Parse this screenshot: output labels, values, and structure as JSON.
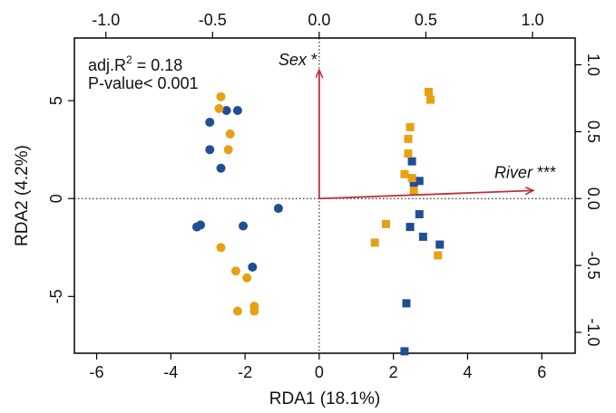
{
  "chart_data": {
    "type": "scatter",
    "title": "",
    "xlabel": "RDA1 (18.1%)",
    "ylabel": "RDA2 (4.2%)",
    "xlim": [
      -6.6,
      6.9
    ],
    "ylim": [
      -7.9,
      8.2
    ],
    "x_ticks": [
      "-6",
      "-4",
      "-2",
      "0",
      "2",
      "4",
      "6"
    ],
    "y_ticks": [
      "-5",
      "0",
      "5"
    ],
    "top_axis": {
      "range": [
        -1.2,
        1.2
      ],
      "ticks": [
        "-1.0",
        "-0.5",
        "0.0",
        "0.5",
        "1.0"
      ]
    },
    "right_axis": {
      "range": [
        -1.2,
        1.2
      ],
      "ticks": [
        "-1.0",
        "-0.5",
        "0.0",
        "0.5",
        "1.0"
      ]
    },
    "grid": false,
    "annotations": [
      "adj.R",
      "2",
      " = 0.18",
      "P-value< 0.001"
    ],
    "colors": {
      "blue": "#1f4e96",
      "orange": "#e8a015",
      "arrow": "#c0303a"
    },
    "series": [
      {
        "marker": "circle",
        "color": "#1f4e96",
        "points": [
          [
            -2.95,
            3.9
          ],
          [
            -2.5,
            4.5
          ],
          [
            -2.2,
            4.5
          ],
          [
            -2.95,
            2.5
          ],
          [
            -2.65,
            1.55
          ],
          [
            -3.3,
            -1.45
          ],
          [
            -3.2,
            -1.35
          ],
          [
            -2.05,
            -1.4
          ],
          [
            -1.1,
            -0.5
          ],
          [
            -1.8,
            -3.5
          ]
        ]
      },
      {
        "marker": "circle",
        "color": "#e8a015",
        "points": [
          [
            -2.65,
            5.2
          ],
          [
            -2.7,
            4.6
          ],
          [
            -2.4,
            3.3
          ],
          [
            -2.45,
            2.5
          ],
          [
            -2.65,
            -2.5
          ],
          [
            -2.25,
            -3.7
          ],
          [
            -1.95,
            -4.05
          ],
          [
            -1.75,
            -5.5
          ],
          [
            -1.75,
            -5.75
          ],
          [
            -2.2,
            -5.75
          ]
        ]
      },
      {
        "marker": "square",
        "color": "#1f4e96",
        "points": [
          [
            2.5,
            1.9
          ],
          [
            2.7,
            0.9
          ],
          [
            2.55,
            0.8
          ],
          [
            2.7,
            -0.8
          ],
          [
            2.45,
            -1.45
          ],
          [
            2.8,
            -1.95
          ],
          [
            3.25,
            -2.35
          ],
          [
            2.35,
            -5.35
          ],
          [
            2.3,
            -7.8
          ]
        ]
      },
      {
        "marker": "square",
        "color": "#e8a015",
        "points": [
          [
            2.95,
            5.45
          ],
          [
            3.0,
            5.05
          ],
          [
            2.45,
            3.65
          ],
          [
            2.4,
            3.05
          ],
          [
            2.4,
            2.3
          ],
          [
            2.3,
            1.25
          ],
          [
            2.5,
            1.05
          ],
          [
            2.55,
            0.4
          ],
          [
            1.8,
            -1.3
          ],
          [
            1.5,
            -2.25
          ],
          [
            3.2,
            -2.9
          ]
        ]
      }
    ],
    "biplot_arrows": [
      {
        "label": "Sex",
        "signif": " *",
        "x": 0.0,
        "y": 0.955
      },
      {
        "label": "River",
        "signif": " ***",
        "x": 1.0,
        "y": 0.06
      }
    ]
  }
}
